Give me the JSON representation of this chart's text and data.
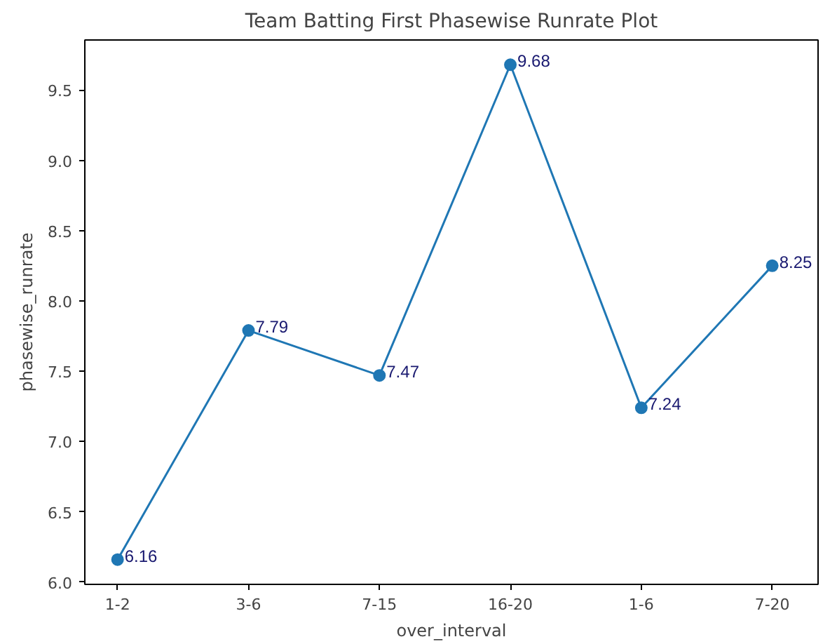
{
  "chart_data": {
    "type": "line",
    "title": "Team Batting First Phasewise Runrate Plot",
    "xlabel": "over_interval",
    "ylabel": "phasewise_runrate",
    "categories": [
      "1-2",
      "3-6",
      "7-15",
      "16-20",
      "1-6",
      "7-20"
    ],
    "series": [
      {
        "color": "#1f77b4",
        "values": [
          6.16,
          7.79,
          7.47,
          9.68,
          7.24,
          8.25
        ]
      }
    ],
    "ylim": [
      5.984,
      9.856
    ],
    "yticks": [
      {
        "value": 6,
        "label": "6.0"
      },
      6.5,
      {
        "value": 7,
        "label": "7.0"
      },
      7.5,
      {
        "value": 8,
        "label": "8.0"
      },
      8.5,
      {
        "value": 9,
        "label": "9.0"
      },
      9.5
    ],
    "marker": "circle",
    "data_labels": true
  }
}
